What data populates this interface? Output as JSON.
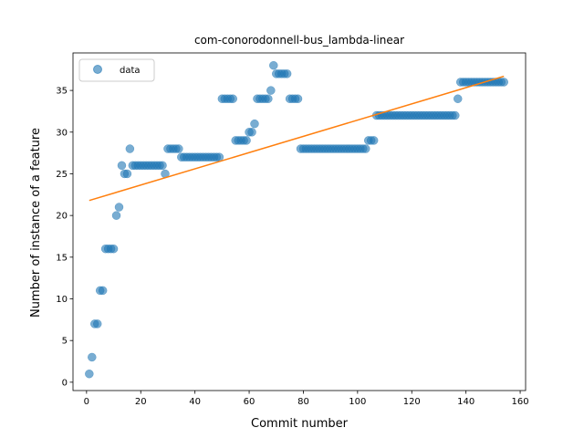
{
  "chart_data": {
    "type": "scatter",
    "title": "com-conorodonnell-bus_lambda-linear",
    "xlabel": "Commit number",
    "ylabel": "Number of instance of a feature",
    "xlim": [
      -5,
      162
    ],
    "ylim": [
      -1,
      39.5
    ],
    "xticks": [
      0,
      20,
      40,
      60,
      80,
      100,
      120,
      140,
      160
    ],
    "yticks": [
      0,
      5,
      10,
      15,
      20,
      25,
      30,
      35
    ],
    "grid": false,
    "legend": {
      "placement": "top-left",
      "entries": [
        "data"
      ]
    },
    "colors": {
      "points": "#1f77b4",
      "fit_line": "#ff7f0e"
    },
    "series": [
      {
        "name": "data",
        "kind": "scatter",
        "segments": [
          {
            "x_from": 1,
            "x_to": 1,
            "y": 1
          },
          {
            "x_from": 2,
            "x_to": 2,
            "y": 3
          },
          {
            "x_from": 3,
            "x_to": 4,
            "y": 7
          },
          {
            "x_from": 5,
            "x_to": 6,
            "y": 11
          },
          {
            "x_from": 7,
            "x_to": 10,
            "y": 16
          },
          {
            "x_from": 11,
            "x_to": 11,
            "y": 20
          },
          {
            "x_from": 12,
            "x_to": 12,
            "y": 21
          },
          {
            "x_from": 13,
            "x_to": 13,
            "y": 26
          },
          {
            "x_from": 14,
            "x_to": 15,
            "y": 25
          },
          {
            "x_from": 16,
            "x_to": 16,
            "y": 28
          },
          {
            "x_from": 17,
            "x_to": 28,
            "y": 26
          },
          {
            "x_from": 29,
            "x_to": 29,
            "y": 25
          },
          {
            "x_from": 30,
            "x_to": 34,
            "y": 28
          },
          {
            "x_from": 35,
            "x_to": 49,
            "y": 27
          },
          {
            "x_from": 50,
            "x_to": 54,
            "y": 34
          },
          {
            "x_from": 55,
            "x_to": 59,
            "y": 29
          },
          {
            "x_from": 60,
            "x_to": 61,
            "y": 30
          },
          {
            "x_from": 62,
            "x_to": 62,
            "y": 31
          },
          {
            "x_from": 63,
            "x_to": 67,
            "y": 34
          },
          {
            "x_from": 68,
            "x_to": 68,
            "y": 35
          },
          {
            "x_from": 69,
            "x_to": 69,
            "y": 38
          },
          {
            "x_from": 70,
            "x_to": 74,
            "y": 37
          },
          {
            "x_from": 75,
            "x_to": 78,
            "y": 34
          },
          {
            "x_from": 79,
            "x_to": 103,
            "y": 28
          },
          {
            "x_from": 104,
            "x_to": 106,
            "y": 29
          },
          {
            "x_from": 107,
            "x_to": 136,
            "y": 32
          },
          {
            "x_from": 137,
            "x_to": 137,
            "y": 34
          },
          {
            "x_from": 138,
            "x_to": 154,
            "y": 36
          }
        ]
      },
      {
        "name": "",
        "kind": "line",
        "x": [
          1,
          154
        ],
        "y": [
          21.8,
          36.7
        ]
      }
    ]
  }
}
